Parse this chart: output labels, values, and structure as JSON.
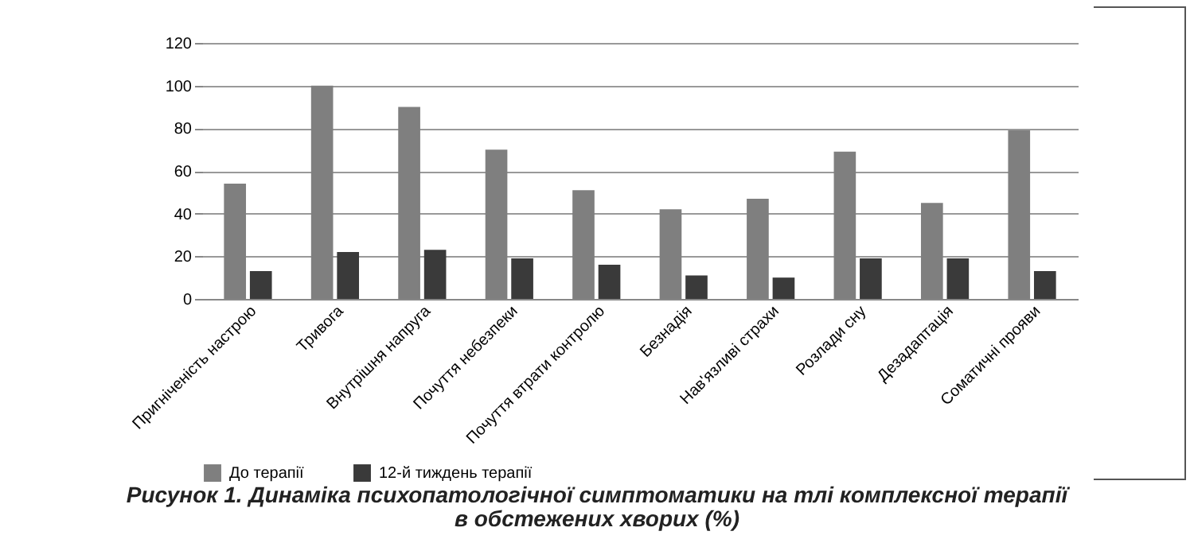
{
  "chart_data": {
    "type": "bar",
    "title": "Рисунок 1. Динаміка психопатологічної симптоматики на тлі комплексної терапії в обстежених хворих (%)",
    "categories": [
      "Пригніченість настрою",
      "Тривога",
      "Внутрішня напруга",
      "Почуття небезпеки",
      "Почуття втрати контролю",
      "Безнадія",
      "Нав'язливі страхи",
      "Розлади сну",
      "Дезадаптація",
      "Соматичні прояви"
    ],
    "series": [
      {
        "name": "До терапії",
        "color": "#7f7f7f",
        "values": [
          54,
          100,
          90,
          70,
          51,
          42,
          47,
          69,
          45,
          79
        ]
      },
      {
        "name": "12-й тиждень терапії",
        "color": "#3a3a3a",
        "values": [
          13,
          22,
          23,
          19,
          16,
          11,
          10,
          19,
          19,
          13
        ]
      }
    ],
    "ylim": [
      0,
      120
    ],
    "yticks": [
      0,
      20,
      40,
      60,
      80,
      100,
      120
    ],
    "grid": "y",
    "legend": "bottom"
  }
}
